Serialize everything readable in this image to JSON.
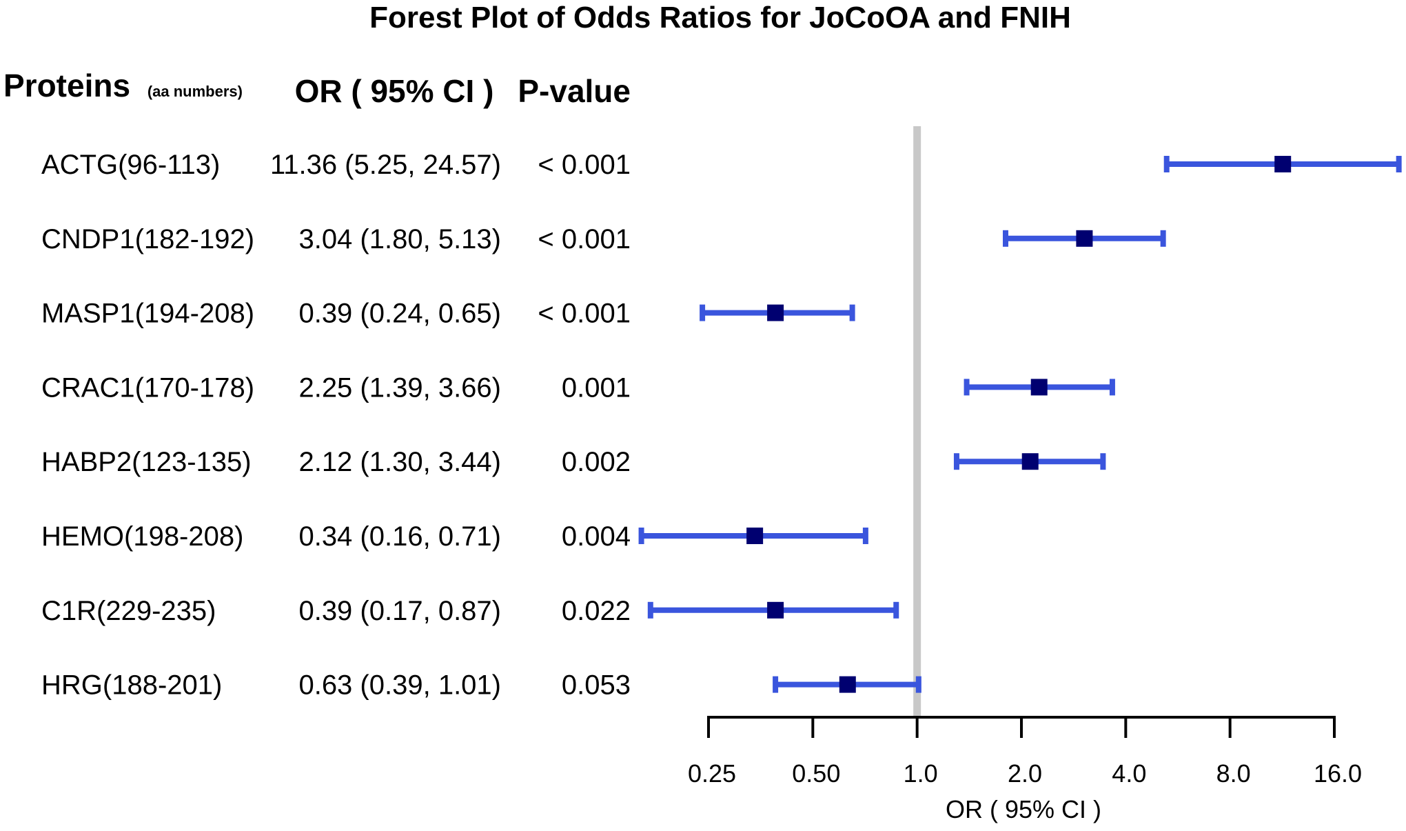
{
  "chart_data": {
    "type": "forest",
    "title": "Forest Plot of Odds Ratios for JoCoOA and FNIH",
    "columns": {
      "protein": "Proteins",
      "protein_sub": "(aa numbers)",
      "or_ci": "OR ( 95% CI )",
      "pvalue": "P-value"
    },
    "rows": [
      {
        "protein": "ACTG(96-113)",
        "or_ci": "11.36 (5.25, 24.57)",
        "p": "< 0.001",
        "or": 11.36,
        "lo": 5.25,
        "hi": 24.57
      },
      {
        "protein": "CNDP1(182-192)",
        "or_ci": "3.04 (1.80,  5.13)",
        "p": "< 0.001",
        "or": 3.04,
        "lo": 1.8,
        "hi": 5.13
      },
      {
        "protein": "MASP1(194-208)",
        "or_ci": "0.39 (0.24,  0.65)",
        "p": "< 0.001",
        "or": 0.39,
        "lo": 0.24,
        "hi": 0.65
      },
      {
        "protein": "CRAC1(170-178)",
        "or_ci": "2.25 (1.39,  3.66)",
        "p": "0.001",
        "or": 2.25,
        "lo": 1.39,
        "hi": 3.66
      },
      {
        "protein": "HABP2(123-135)",
        "or_ci": "2.12 (1.30,  3.44)",
        "p": "0.002",
        "or": 2.12,
        "lo": 1.3,
        "hi": 3.44
      },
      {
        "protein": "HEMO(198-208)",
        "or_ci": "0.34 (0.16,  0.71)",
        "p": "0.004",
        "or": 0.34,
        "lo": 0.16,
        "hi": 0.71
      },
      {
        "protein": "C1R(229-235)",
        "or_ci": "0.39 (0.17,  0.87)",
        "p": "0.022",
        "or": 0.39,
        "lo": 0.17,
        "hi": 0.87
      },
      {
        "protein": "HRG(188-201)",
        "or_ci": "0.63 (0.39,  1.01)",
        "p": "0.053",
        "or": 0.63,
        "lo": 0.39,
        "hi": 1.01
      }
    ],
    "x_scale": "log2",
    "xlim": [
      0.25,
      16
    ],
    "x_ticks": [
      0.25,
      0.5,
      1,
      2,
      4,
      8,
      16
    ],
    "x_tick_labels": [
      "0.25",
      "0.50",
      "1.0",
      "2.0",
      "4.0",
      "8.0",
      "16.0"
    ],
    "xlabel": "OR ( 95% CI )",
    "reference_line": 1,
    "colors": {
      "ci": "#3a55dd",
      "point": "#000070",
      "reference": "#c8c8c8"
    }
  }
}
